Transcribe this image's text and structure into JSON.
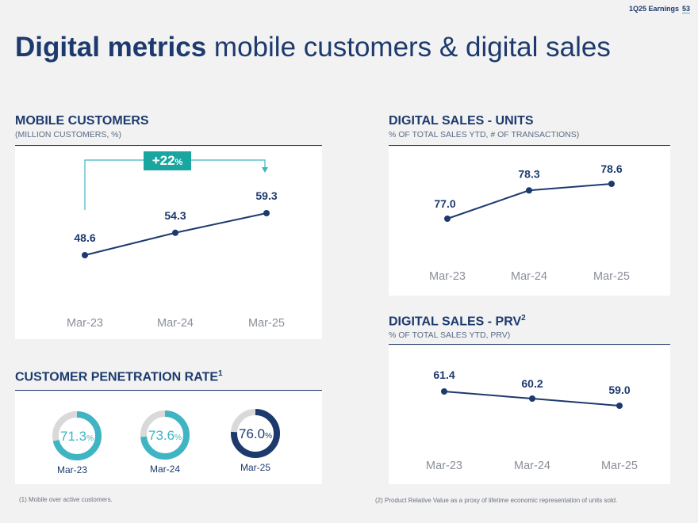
{
  "header": {
    "meta": "1Q25 Earnings",
    "page": "53"
  },
  "title": {
    "bold": "Digital metrics",
    "rest": " mobile customers & digital sales"
  },
  "sections": {
    "mobile": {
      "title": "MOBILE CUSTOMERS",
      "subtitle": "(MILLION CUSTOMERS, %)"
    },
    "penetration": {
      "title": "CUSTOMER PENETRATION RATE",
      "sup": "1"
    },
    "units": {
      "title": "DIGITAL SALES - UNITS",
      "subtitle": "% OF TOTAL SALES YTD, # OF TRANSACTIONS)"
    },
    "prv": {
      "title": "DIGITAL SALES - PRV",
      "sup": "2",
      "subtitle": "% OF TOTAL SALES YTD, PRV)"
    }
  },
  "growth_badge": {
    "value": "+22",
    "unit": "%"
  },
  "colors": {
    "navy": "#1d3a6e",
    "teal": "#3fb5c4",
    "teal_dark": "#1aa6a0",
    "gray_ring": "#d9d9d9",
    "tick": "#8a8f98"
  },
  "chart_data": [
    {
      "type": "line",
      "title": "MOBILE CUSTOMERS",
      "categories": [
        "Mar-23",
        "Mar-24",
        "Mar-25"
      ],
      "values": [
        48.6,
        54.3,
        59.3
      ],
      "labels": [
        "48.6",
        "54.3",
        "59.3"
      ],
      "annotation": "+22%"
    },
    {
      "type": "line",
      "title": "DIGITAL SALES - UNITS",
      "categories": [
        "Mar-23",
        "Mar-24",
        "Mar-25"
      ],
      "values": [
        77.0,
        78.3,
        78.6
      ],
      "labels": [
        "77.0",
        "78.3",
        "78.6"
      ]
    },
    {
      "type": "line",
      "title": "DIGITAL SALES - PRV",
      "categories": [
        "Mar-23",
        "Mar-24",
        "Mar-25"
      ],
      "values": [
        61.4,
        60.2,
        59.0
      ],
      "labels": [
        "61.4",
        "60.2",
        "59.0"
      ]
    },
    {
      "type": "pie",
      "title": "CUSTOMER PENETRATION RATE",
      "categories": [
        "Mar-23",
        "Mar-24",
        "Mar-25"
      ],
      "values": [
        71.3,
        73.6,
        76.0
      ],
      "labels": [
        "71.3",
        "73.6",
        "76.0"
      ],
      "unit": "%"
    }
  ],
  "footnotes": {
    "f1": "(1) Mobile over active customers.",
    "f2": "(2) Product Relative Value as a proxy of lifetime economic representation of units sold."
  }
}
